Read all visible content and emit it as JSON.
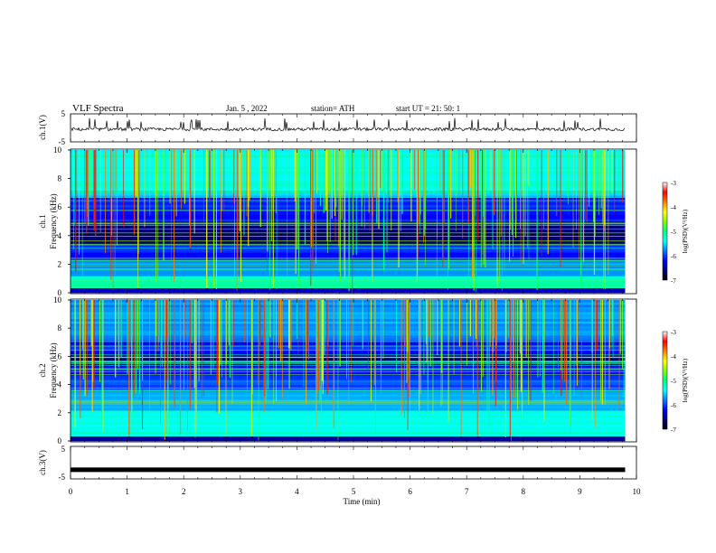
{
  "header": {
    "title": "VLF  Spectra",
    "date": "Jan.  5   , 2022",
    "station": "station= ATH",
    "start_ut": "start  UT  =    21: 50: 1"
  },
  "chart_data": [
    {
      "type": "line",
      "panel": "ch1-waveform",
      "ylabel": "ch.1(V)",
      "ylim": [
        -5,
        5
      ],
      "yticks": [
        "5",
        "-5"
      ],
      "xlim": [
        0,
        10
      ],
      "x_end_min": 9.8,
      "baseline": -0.5,
      "series": [
        {
          "values": [
            -0.5
          ]
        }
      ]
    },
    {
      "type": "heatmap",
      "panel": "ch1-spectrogram",
      "ylabel": "Frequency  (kHz)",
      "channel_label": "ch.1",
      "ylim": [
        0,
        10
      ],
      "yticks": [
        "0",
        "2",
        "4",
        "6",
        "8",
        "10"
      ],
      "xlim": [
        0,
        10
      ],
      "x_end_min": 9.8,
      "colorbar": {
        "label": "log(PSD)(V²/Hz)",
        "range": [
          -7,
          -3
        ],
        "ticks": [
          "-3",
          "-4",
          "-5",
          "-6",
          "-7"
        ]
      }
    },
    {
      "type": "heatmap",
      "panel": "ch2-spectrogram",
      "ylabel": "Frequency  (kHz)",
      "channel_label": "ch.2",
      "ylim": [
        0,
        10
      ],
      "yticks": [
        "0",
        "2",
        "4",
        "6",
        "8",
        "10"
      ],
      "xlim": [
        0,
        10
      ],
      "x_end_min": 9.8,
      "colorbar": {
        "label": "log(PSD)(V²/Hz)",
        "range": [
          -7,
          -3
        ],
        "ticks": [
          "-3",
          "-4",
          "-5",
          "-6",
          "-7"
        ]
      }
    },
    {
      "type": "line",
      "panel": "ch3-waveform",
      "ylabel": "ch.3(V)",
      "ylim": [
        -5,
        5
      ],
      "yticks": [
        "5",
        "-5"
      ],
      "xlim": [
        0,
        10
      ],
      "x_end_min": 9.8,
      "series": [
        {
          "values": [
            -2.2
          ]
        }
      ]
    }
  ],
  "xaxis": {
    "label": "Time  (min)",
    "ticks": [
      "0",
      "1",
      "2",
      "3",
      "4",
      "5",
      "6",
      "7",
      "8",
      "9",
      "10"
    ]
  },
  "colors": {
    "axis": "#000000",
    "trace": "#000000",
    "background": "#ffffff",
    "colormap": [
      "#000000",
      "#000080",
      "#0000ff",
      "#0080ff",
      "#00ffff",
      "#00ff80",
      "#80ff00",
      "#ffff00",
      "#ff8000",
      "#ff0000",
      "#ffffff"
    ]
  }
}
